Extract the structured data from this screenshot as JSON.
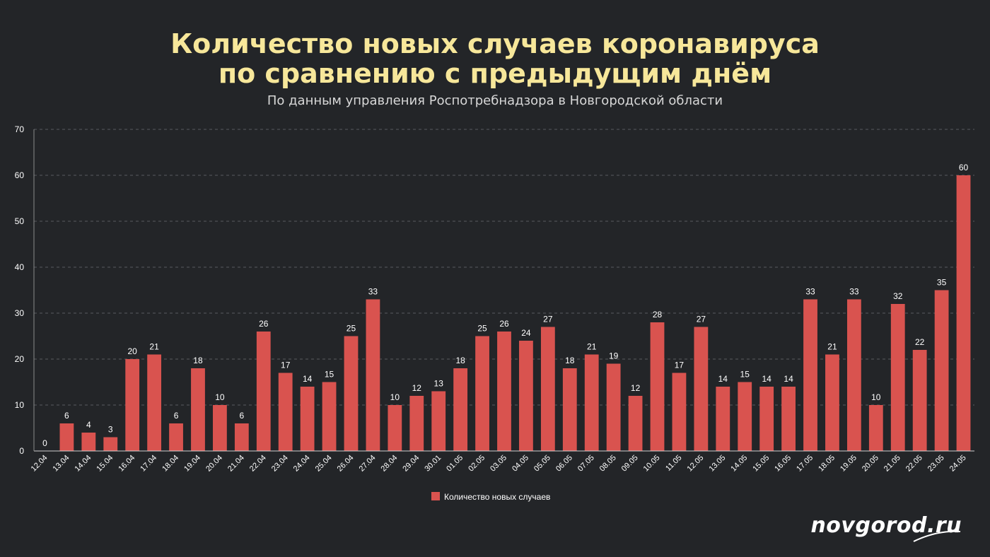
{
  "header": {
    "title_line1": "Количество новых случаев коронавируса",
    "title_line2": "по сравнению с предыдущим днём",
    "subtitle": "По данным управления Роспотребнадзора в Новгородской области"
  },
  "branding": {
    "logo_text": "novgorod.ru"
  },
  "colors": {
    "background": "#232528",
    "bar": "#d9534f",
    "title": "#f7e79a",
    "text": "#ffffff"
  },
  "chart_data": {
    "type": "bar",
    "categories": [
      "12.04",
      "13.04",
      "14.04",
      "15.04",
      "16.04",
      "17.04",
      "18.04",
      "19.04",
      "20.04",
      "21.04",
      "22.04",
      "23.04",
      "24.04",
      "25.04",
      "26.04",
      "27.04",
      "28.04",
      "29.04",
      "30.01",
      "01.05",
      "02.05",
      "03.05",
      "04.05",
      "05.05",
      "06.05",
      "07.05",
      "08.05",
      "09.05",
      "10.05",
      "11.05",
      "12.05",
      "13.05",
      "14.05",
      "15.05",
      "16.05",
      "17.05",
      "18.05",
      "19.05",
      "20.05",
      "21.05",
      "22.05",
      "23.05",
      "24.05"
    ],
    "series": [
      {
        "name": "Количество новых случаев",
        "values": [
          0,
          6,
          4,
          3,
          20,
          21,
          6,
          18,
          10,
          6,
          26,
          17,
          14,
          15,
          25,
          33,
          10,
          12,
          13,
          18,
          25,
          26,
          24,
          27,
          18,
          21,
          19,
          12,
          28,
          17,
          27,
          14,
          15,
          14,
          14,
          33,
          21,
          33,
          10,
          32,
          22,
          35,
          60
        ]
      }
    ],
    "yticks": [
      0,
      10,
      20,
      30,
      40,
      50,
      60,
      70
    ],
    "ylim": [
      0,
      70
    ],
    "grid": true,
    "legend": "bottom-center",
    "data_labels": true
  }
}
